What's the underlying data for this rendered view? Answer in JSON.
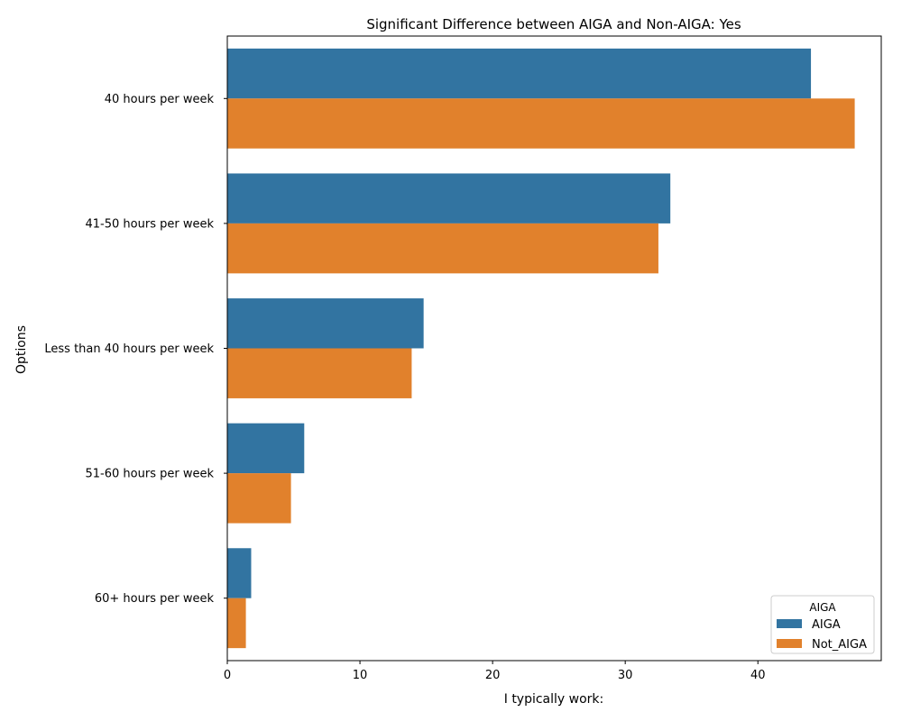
{
  "chart_data": {
    "type": "bar",
    "orientation": "horizontal",
    "title": "Significant Difference between AIGA and Non-AIGA: Yes",
    "xlabel": "I typically work:",
    "ylabel": "Options",
    "categories": [
      "40 hours per week",
      "41-50 hours per week",
      "Less than 40 hours per week",
      "51-60 hours per week",
      "60+ hours per week"
    ],
    "series": [
      {
        "name": "AIGA",
        "color": "#3274a1",
        "values": [
          44.0,
          33.4,
          14.8,
          5.8,
          1.8
        ]
      },
      {
        "name": "Not_AIGA",
        "color": "#e1812c",
        "values": [
          47.3,
          32.5,
          13.9,
          4.8,
          1.4
        ]
      }
    ],
    "xlim": [
      0,
      49.3
    ],
    "xticks": [
      0,
      10,
      20,
      30,
      40
    ],
    "grid": false,
    "legend": {
      "title": "AIGA",
      "position": "lower right"
    }
  }
}
